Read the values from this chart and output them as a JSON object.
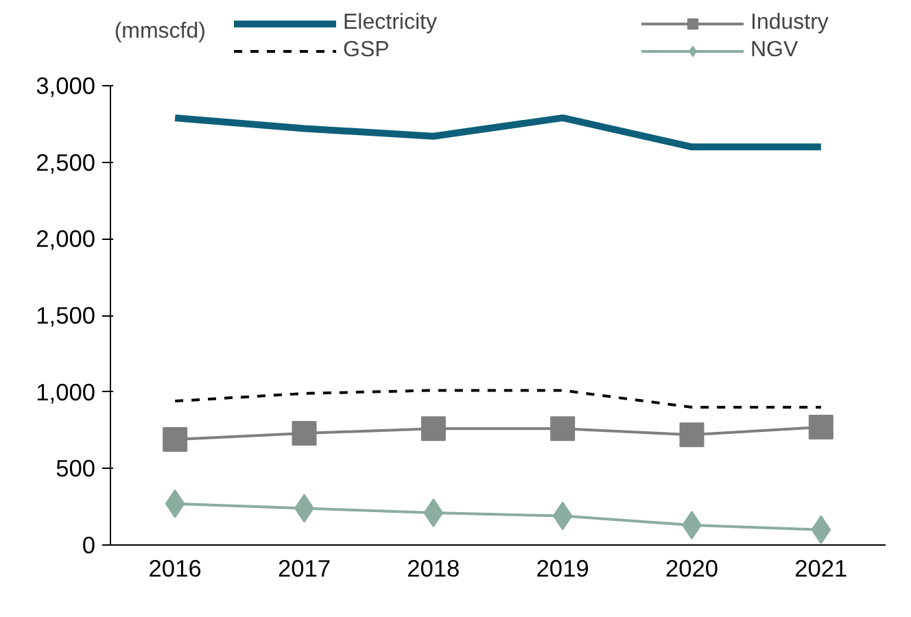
{
  "chart_data": {
    "type": "line",
    "ylabel": "(mmscfd)",
    "categories": [
      "2016",
      "2017",
      "2018",
      "2019",
      "2020",
      "2021"
    ],
    "series": [
      {
        "name": "Electricity",
        "color": "#0e5f7a",
        "values": [
          2790,
          2720,
          2670,
          2790,
          2600,
          2600
        ],
        "marker": "none",
        "line_style": "solid"
      },
      {
        "name": "Industry",
        "color": "#7f7f7f",
        "values": [
          690,
          730,
          760,
          760,
          720,
          770
        ],
        "marker": "square",
        "line_style": "solid"
      },
      {
        "name": "GSP",
        "color": "#000000",
        "values": [
          940,
          990,
          1010,
          1010,
          900,
          900
        ],
        "marker": "none",
        "line_style": "dashed"
      },
      {
        "name": "NGV",
        "color": "#8aada0",
        "values": [
          270,
          240,
          210,
          190,
          130,
          100
        ],
        "marker": "diamond",
        "line_style": "solid"
      }
    ],
    "ylim": [
      0,
      3000
    ],
    "yticks": [
      {
        "value": 0,
        "label": "0"
      },
      {
        "value": 500,
        "label": "500"
      },
      {
        "value": 1000,
        "label": "1,000"
      },
      {
        "value": 1500,
        "label": "1,500"
      },
      {
        "value": 2000,
        "label": "2,000"
      },
      {
        "value": 2500,
        "label": "2,500"
      },
      {
        "value": 3000,
        "label": "3,000"
      }
    ],
    "grid": false,
    "legend": "top"
  }
}
